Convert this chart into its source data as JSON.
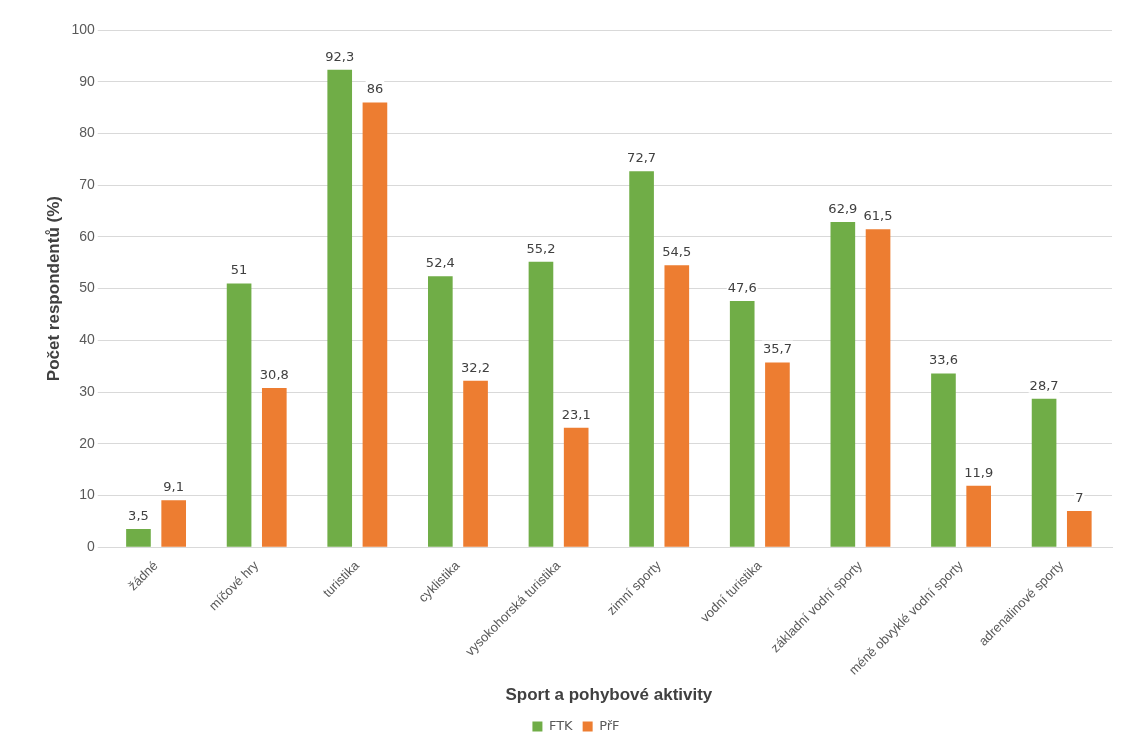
{
  "chart_data": {
    "type": "bar",
    "xlabel": "Sport a pohybové aktivity",
    "ylabel": "Počet respondentů (%)",
    "categories": [
      "žádné",
      "míčové hry",
      "turistika",
      "cyklistika",
      "vysokohorská turistika",
      "zimní sporty",
      "vodní turistika",
      "základní vodní sporty",
      "méně obvyklé vodní sporty",
      "adrenalinové sporty"
    ],
    "series": [
      {
        "name": "FTK",
        "color": "#70ad47",
        "values": [
          3.5,
          51,
          92.3,
          52.4,
          55.2,
          72.7,
          47.6,
          62.9,
          33.6,
          28.7
        ],
        "value_labels": [
          "3,5",
          "51",
          "92,3",
          "52,4",
          "55,2",
          "72,7",
          "47,6",
          "62,9",
          "33,6",
          "28,7"
        ]
      },
      {
        "name": "PřF",
        "color": "#ed7d31",
        "values": [
          9.1,
          30.8,
          86,
          32.2,
          23.1,
          54.5,
          35.7,
          61.5,
          11.9,
          7
        ],
        "value_labels": [
          "9,1",
          "30,8",
          "86",
          "32,2",
          "23,1",
          "54,5",
          "35,7",
          "61,5",
          "11,9",
          "7"
        ]
      }
    ],
    "ylim": [
      0,
      100
    ],
    "yticks": [
      0,
      10,
      20,
      30,
      40,
      50,
      60,
      70,
      80,
      90,
      100
    ],
    "grid": "y",
    "legend": "bottom"
  }
}
